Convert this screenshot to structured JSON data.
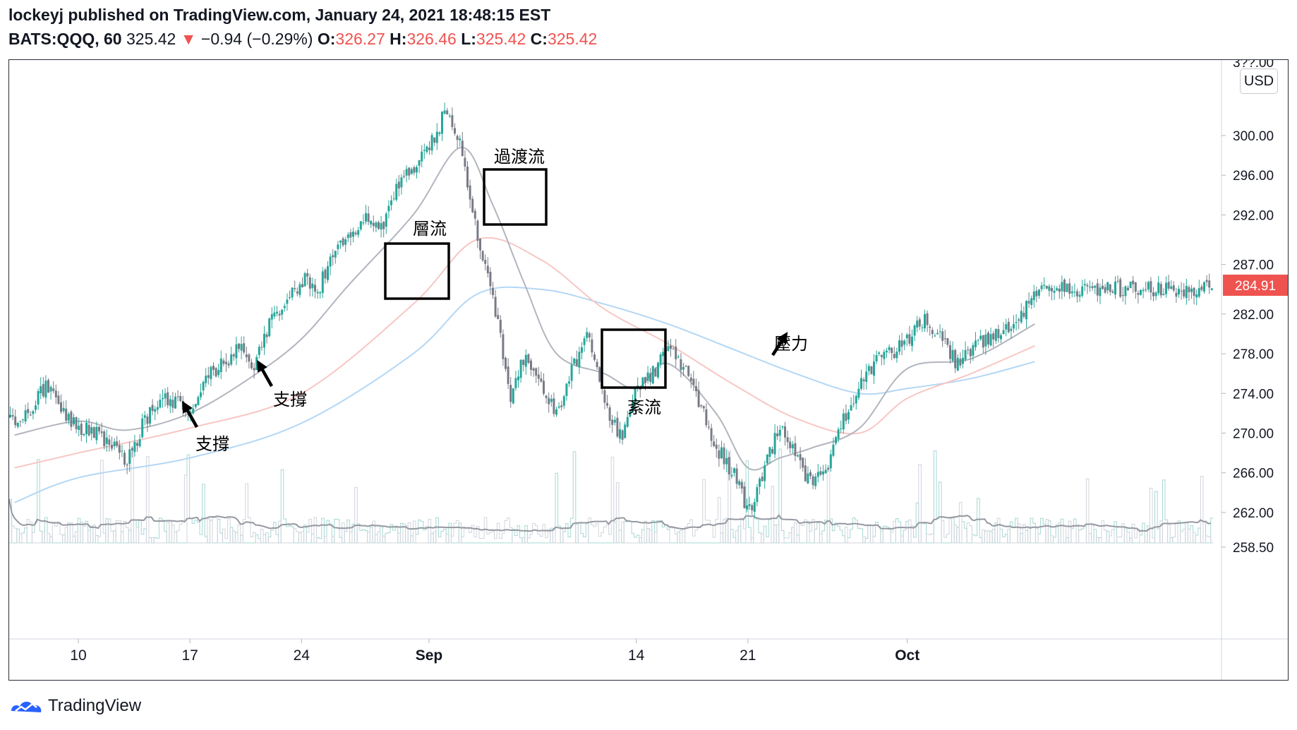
{
  "header": {
    "published": "lockeyj published on TradingView.com, January 24, 2021 18:48:15 EST",
    "symbol": "BATS:QQQ, 60",
    "last": "325.42",
    "arrow": "▼",
    "change": "−0.94 (−0.29%)",
    "o_label": "O:",
    "o_value": "326.27",
    "h_label": "H:",
    "h_value": "326.46",
    "l_label": "L:",
    "l_value": "325.42",
    "c_label": "C:",
    "c_value": "325.42"
  },
  "currency_button": "USD",
  "footer": {
    "brand": "TradingView"
  },
  "colors": {
    "up": "#26a69a",
    "down": "#787b86",
    "price_tag": "#ef5350",
    "ma_fast": "#b2b5be",
    "ma_mid": "#f7c7c4",
    "ma_slow": "#b3d7f5"
  },
  "chart_data": {
    "type": "candlestick",
    "y_axis": {
      "ticks": [
        258.5,
        262.0,
        266.0,
        270.0,
        274.0,
        278.0,
        282.0,
        287.0,
        292.0,
        296.0,
        300.0
      ],
      "tick_labels": [
        "258.50",
        "262.00",
        "266.00",
        "270.00",
        "274.00",
        "278.00",
        "282.00",
        "287.00",
        "292.00",
        "296.00",
        "300.00"
      ],
      "top_partial_label": "3??.00",
      "range": [
        257,
        307
      ]
    },
    "x_axis": {
      "labels": [
        "10",
        "17",
        "24",
        "Sep",
        "14",
        "21",
        "Oct"
      ]
    },
    "current_price_label": "284.91",
    "annotations": [
      {
        "text": "支撐",
        "kind": "arrow-label"
      },
      {
        "text": "支撐",
        "kind": "arrow-label"
      },
      {
        "text": "層流",
        "kind": "box-label"
      },
      {
        "text": "過渡流",
        "kind": "box-label"
      },
      {
        "text": "紊流",
        "kind": "box-label"
      },
      {
        "text": "壓力",
        "kind": "arrow-label"
      }
    ],
    "price_path": [
      [
        "2020-08-06",
        271.5
      ],
      [
        "2020-08-07",
        272.5
      ],
      [
        "2020-08-08",
        275
      ],
      [
        "2020-08-09",
        272
      ],
      [
        "2020-08-10",
        270.5
      ],
      [
        "2020-08-11",
        270
      ],
      [
        "2020-08-12",
        269
      ],
      [
        "2020-08-13",
        267
      ],
      [
        "2020-08-14",
        271
      ],
      [
        "2020-08-15",
        273.5
      ],
      [
        "2020-08-16",
        273
      ],
      [
        "2020-08-17",
        272.5
      ],
      [
        "2020-08-18",
        275.5
      ],
      [
        "2020-08-19",
        277
      ],
      [
        "2020-08-20",
        278.5
      ],
      [
        "2020-08-21",
        277
      ],
      [
        "2020-08-22",
        281.5
      ],
      [
        "2020-08-23",
        283
      ],
      [
        "2020-08-24",
        285.5
      ],
      [
        "2020-08-25",
        284.5
      ],
      [
        "2020-08-26",
        288.5
      ],
      [
        "2020-08-27",
        290.5
      ],
      [
        "2020-08-28",
        291.5
      ],
      [
        "2020-08-29",
        291
      ],
      [
        "2020-08-30",
        295
      ],
      [
        "2020-08-31",
        297
      ],
      [
        "2020-09-01",
        299
      ],
      [
        "2020-09-02",
        302.5
      ],
      [
        "2020-09-03",
        298.5
      ],
      [
        "2020-09-04",
        290
      ],
      [
        "2020-09-05",
        283.5
      ],
      [
        "2020-09-06",
        273.5
      ],
      [
        "2020-09-07",
        278
      ],
      [
        "2020-09-08",
        274.5
      ],
      [
        "2020-09-09",
        272
      ],
      [
        "2020-09-10",
        277
      ],
      [
        "2020-09-11",
        280
      ],
      [
        "2020-09-12",
        272.5
      ],
      [
        "2020-09-13",
        269.5
      ],
      [
        "2020-09-14",
        274.5
      ],
      [
        "2020-09-15",
        276
      ],
      [
        "2020-09-16",
        278.5
      ],
      [
        "2020-09-17",
        276.5
      ],
      [
        "2020-09-18",
        272.5
      ],
      [
        "2020-09-19",
        268.5
      ],
      [
        "2020-09-20",
        266
      ],
      [
        "2020-09-21",
        262
      ],
      [
        "2020-09-22",
        266.5
      ],
      [
        "2020-09-23",
        271
      ],
      [
        "2020-09-24",
        267.5
      ],
      [
        "2020-09-25",
        264.5
      ],
      [
        "2020-09-26",
        267
      ],
      [
        "2020-09-27",
        271.5
      ],
      [
        "2020-09-28",
        275
      ],
      [
        "2020-09-29",
        277.5
      ],
      [
        "2020-09-30",
        278
      ],
      [
        "2020-10-01",
        279.5
      ],
      [
        "2020-10-02",
        281.5
      ],
      [
        "2020-10-03",
        280
      ],
      [
        "2020-10-04",
        277
      ],
      [
        "2020-10-05",
        278.5
      ],
      [
        "2020-10-06",
        279.5
      ],
      [
        "2020-10-07",
        280
      ],
      [
        "2020-10-08",
        281.5
      ],
      [
        "2020-10-09",
        284.5
      ]
    ],
    "sma_fast": [
      [
        "2020-08-06",
        269.8
      ],
      [
        "2020-08-10",
        271.2
      ],
      [
        "2020-08-13",
        270.3
      ],
      [
        "2020-08-17",
        272.0
      ],
      [
        "2020-08-21",
        275.8
      ],
      [
        "2020-08-24",
        279.5
      ],
      [
        "2020-08-27",
        285.0
      ],
      [
        "2020-08-31",
        292.0
      ],
      [
        "2020-09-03",
        298.8
      ],
      [
        "2020-09-05",
        293.0
      ],
      [
        "2020-09-07",
        285.0
      ],
      [
        "2020-09-09",
        278.0
      ],
      [
        "2020-09-12",
        276.0
      ],
      [
        "2020-09-14",
        274.5
      ],
      [
        "2020-09-16",
        277.0
      ],
      [
        "2020-09-19",
        272.0
      ],
      [
        "2020-09-21",
        266.5
      ],
      [
        "2020-09-23",
        267.5
      ],
      [
        "2020-09-25",
        268.5
      ],
      [
        "2020-09-28",
        270.5
      ],
      [
        "2020-10-01",
        276.5
      ],
      [
        "2020-10-05",
        277.5
      ],
      [
        "2020-10-09",
        281.0
      ]
    ],
    "sma_mid": [
      [
        "2020-08-06",
        266.5
      ],
      [
        "2020-08-10",
        268.0
      ],
      [
        "2020-08-17",
        270.5
      ],
      [
        "2020-08-24",
        274.0
      ],
      [
        "2020-08-31",
        283.0
      ],
      [
        "2020-09-04",
        289.5
      ],
      [
        "2020-09-08",
        287.5
      ],
      [
        "2020-09-12",
        282.5
      ],
      [
        "2020-09-16",
        279.0
      ],
      [
        "2020-09-20",
        275.0
      ],
      [
        "2020-09-24",
        271.5
      ],
      [
        "2020-09-28",
        270.0
      ],
      [
        "2020-10-01",
        273.5
      ],
      [
        "2020-10-05",
        276.0
      ],
      [
        "2020-10-09",
        278.8
      ]
    ],
    "sma_slow": [
      [
        "2020-08-06",
        263.0
      ],
      [
        "2020-08-10",
        265.5
      ],
      [
        "2020-08-17",
        267.5
      ],
      [
        "2020-08-24",
        271.0
      ],
      [
        "2020-08-31",
        278.0
      ],
      [
        "2020-09-04",
        284.0
      ],
      [
        "2020-09-08",
        284.5
      ],
      [
        "2020-09-12",
        283.0
      ],
      [
        "2020-09-16",
        281.0
      ],
      [
        "2020-09-20",
        278.5
      ],
      [
        "2020-09-24",
        276.0
      ],
      [
        "2020-09-28",
        274.0
      ],
      [
        "2020-10-01",
        274.5
      ],
      [
        "2020-10-05",
        275.5
      ],
      [
        "2020-10-09",
        277.2
      ]
    ]
  }
}
